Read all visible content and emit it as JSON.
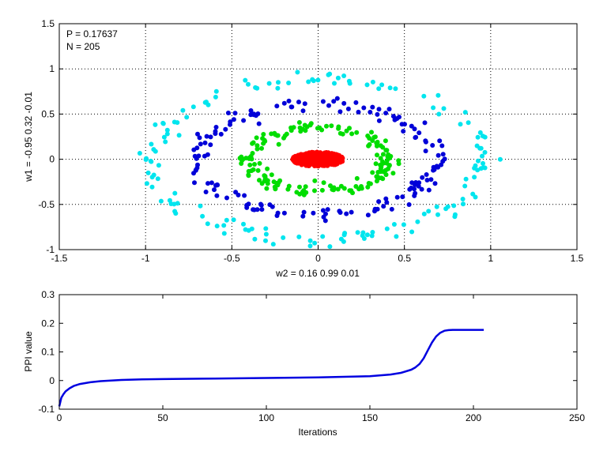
{
  "chart_data": [
    {
      "type": "scatter",
      "title": "",
      "xlabel": "w2 = 0.16  0.99  0.01",
      "ylabel": "w1 = -0.95  0.32  -0.01",
      "xlim": [
        -1.5,
        1.5
      ],
      "ylim": [
        -1,
        1.5
      ],
      "xticks": [
        -1.5,
        -1,
        -0.5,
        0,
        0.5,
        1,
        1.5
      ],
      "yticks": [
        -1,
        -0.5,
        0,
        0.5,
        1,
        1.5
      ],
      "grid": true,
      "grid_style": "dotted",
      "annotations": [
        "P = 0.17637",
        "N = 205"
      ],
      "series": [
        {
          "color": "#00e5ee",
          "shape": "ring",
          "rx": 0.96,
          "ry": 0.89,
          "jitter": 0.045,
          "count": 150
        },
        {
          "color": "#0000d8",
          "shape": "ring",
          "rx": 0.69,
          "ry": 0.61,
          "jitter": 0.035,
          "count": 160
        },
        {
          "color": "#00dd00",
          "shape": "ring",
          "rx": 0.4,
          "ry": 0.35,
          "jitter": 0.035,
          "count": 170
        },
        {
          "color": "#ff0000",
          "shape": "disk",
          "rx": 0.15,
          "ry": 0.08,
          "jitter": 0.0,
          "count": 420
        }
      ]
    },
    {
      "type": "line",
      "title": "",
      "xlabel": "Iterations",
      "ylabel": "PPI value",
      "xlim": [
        0,
        250
      ],
      "ylim": [
        -0.1,
        0.3
      ],
      "xticks": [
        0,
        50,
        100,
        150,
        200,
        250
      ],
      "yticks": [
        -0.1,
        0,
        0.1,
        0.2,
        0.3
      ],
      "grid": false,
      "series": [
        {
          "color": "#0000e0",
          "x": [
            0,
            1,
            2,
            3,
            5,
            7,
            10,
            15,
            20,
            30,
            40,
            50,
            75,
            100,
            125,
            150,
            160,
            165,
            170,
            172,
            174,
            176,
            178,
            180,
            182,
            184,
            186,
            188,
            190,
            195,
            200,
            205
          ],
          "y": [
            -0.09,
            -0.06,
            -0.048,
            -0.038,
            -0.027,
            -0.019,
            -0.012,
            -0.006,
            -0.002,
            0.002,
            0.004,
            0.005,
            0.007,
            0.009,
            0.011,
            0.015,
            0.021,
            0.027,
            0.038,
            0.046,
            0.058,
            0.078,
            0.106,
            0.133,
            0.154,
            0.167,
            0.174,
            0.176,
            0.177,
            0.177,
            0.177,
            0.177
          ]
        }
      ]
    }
  ]
}
